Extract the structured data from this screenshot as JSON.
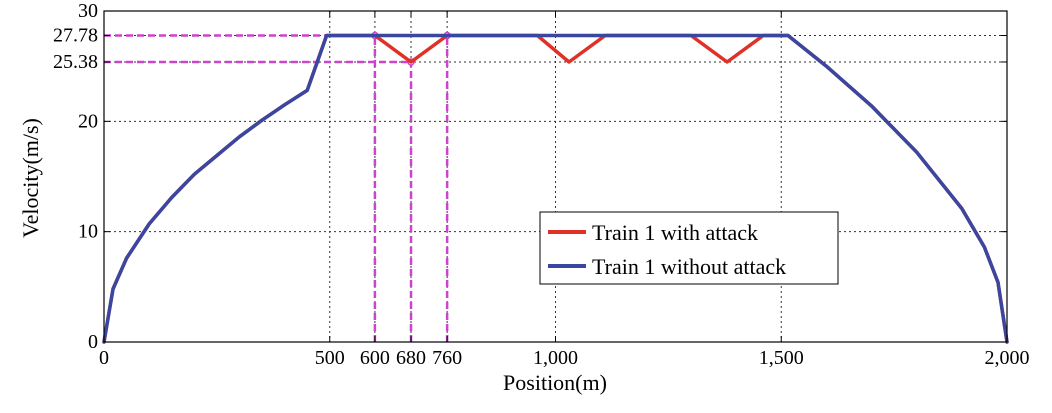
{
  "chart_data": {
    "type": "line",
    "xlabel": "Position(m)",
    "ylabel": "Velocity(m/s)",
    "xlim": [
      0,
      2000
    ],
    "ylim": [
      0,
      30
    ],
    "grid": true,
    "grid_style": "dotted",
    "legend_position": "lower-center-right",
    "x_ticks": [
      {
        "value": 0,
        "label": "0"
      },
      {
        "value": 500,
        "label": "500"
      },
      {
        "value": 600,
        "label": "600"
      },
      {
        "value": 680,
        "label": "680"
      },
      {
        "value": 760,
        "label": "760"
      },
      {
        "value": 1000,
        "label": "1,000"
      },
      {
        "value": 1500,
        "label": "1,500"
      },
      {
        "value": 2000,
        "label": "2,000"
      }
    ],
    "y_ticks": [
      {
        "value": 0,
        "label": "0"
      },
      {
        "value": 10,
        "label": "10"
      },
      {
        "value": 20,
        "label": "20"
      },
      {
        "value": 25.38,
        "label": "25.38"
      },
      {
        "value": 27.78,
        "label": "27.78"
      },
      {
        "value": 30,
        "label": "30"
      }
    ],
    "x_gridlines": [
      500,
      600,
      680,
      760,
      1000,
      1500,
      2000
    ],
    "y_gridlines": [
      10,
      20,
      25.38,
      27.78
    ],
    "series": [
      {
        "name": "Train 1 with attack",
        "color": "#e03128",
        "points": [
          [
            0,
            0
          ],
          [
            20,
            4.8
          ],
          [
            50,
            7.6
          ],
          [
            100,
            10.7
          ],
          [
            150,
            13.1
          ],
          [
            200,
            15.2
          ],
          [
            250,
            16.9
          ],
          [
            300,
            18.6
          ],
          [
            350,
            20.1
          ],
          [
            400,
            21.5
          ],
          [
            450,
            22.8
          ],
          [
            493,
            27.78
          ],
          [
            600,
            27.78
          ],
          [
            680,
            25.38
          ],
          [
            760,
            27.78
          ],
          [
            960,
            27.78
          ],
          [
            1030,
            25.38
          ],
          [
            1110,
            27.78
          ],
          [
            1300,
            27.78
          ],
          [
            1380,
            25.38
          ],
          [
            1460,
            27.78
          ],
          [
            1515,
            27.78
          ],
          [
            1600,
            25.0
          ],
          [
            1700,
            21.4
          ],
          [
            1800,
            17.2
          ],
          [
            1900,
            12.1
          ],
          [
            1950,
            8.6
          ],
          [
            1980,
            5.4
          ],
          [
            2000,
            0
          ]
        ]
      },
      {
        "name": "Train 1 without attack",
        "color": "#3a47a0",
        "points": [
          [
            0,
            0
          ],
          [
            20,
            4.8
          ],
          [
            50,
            7.6
          ],
          [
            100,
            10.7
          ],
          [
            150,
            13.1
          ],
          [
            200,
            15.2
          ],
          [
            250,
            16.9
          ],
          [
            300,
            18.6
          ],
          [
            350,
            20.1
          ],
          [
            400,
            21.5
          ],
          [
            450,
            22.8
          ],
          [
            493,
            27.78
          ],
          [
            1515,
            27.78
          ],
          [
            1600,
            25.0
          ],
          [
            1700,
            21.4
          ],
          [
            1800,
            17.2
          ],
          [
            1900,
            12.1
          ],
          [
            1950,
            8.6
          ],
          [
            1980,
            5.4
          ],
          [
            2000,
            0
          ]
        ]
      }
    ],
    "reference_lines": {
      "color": "#cc44cc",
      "vertical": [
        {
          "x": 600,
          "y_top": 27.78
        },
        {
          "x": 680,
          "y_top": 25.38
        },
        {
          "x": 760,
          "y_top": 27.78
        }
      ],
      "horizontal": [
        {
          "y": 27.78,
          "x_end": 760
        },
        {
          "y": 25.38,
          "x_end": 680
        }
      ],
      "markers": [
        {
          "x": 600,
          "y": 27.78
        },
        {
          "x": 680,
          "y": 25.38
        },
        {
          "x": 760,
          "y": 27.78
        }
      ]
    }
  }
}
